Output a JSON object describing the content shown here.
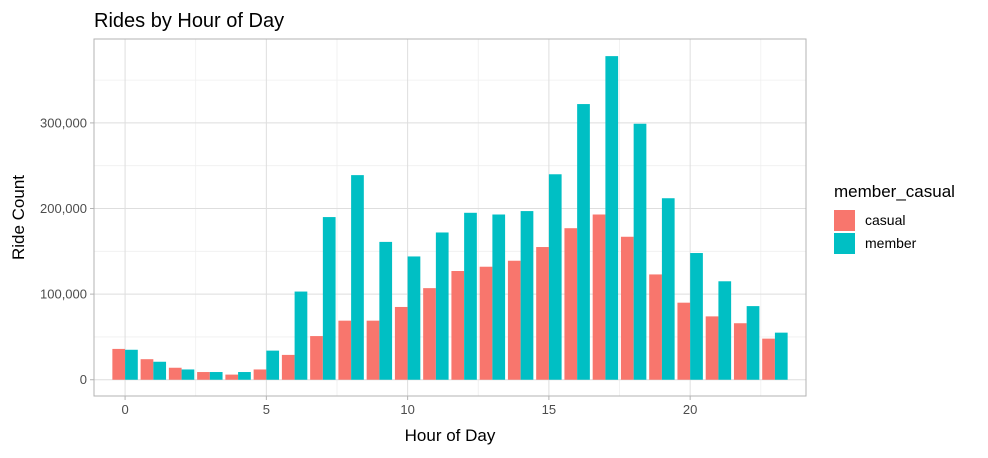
{
  "chart_data": {
    "type": "bar",
    "title": "Rides by Hour of Day",
    "xlabel": "Hour of Day",
    "ylabel": "Ride Count",
    "x": [
      0,
      1,
      2,
      3,
      4,
      5,
      6,
      7,
      8,
      9,
      10,
      11,
      12,
      13,
      14,
      15,
      16,
      17,
      18,
      19,
      20,
      21,
      22,
      23
    ],
    "xticks": [
      0,
      5,
      10,
      15,
      20
    ],
    "xtick_labels": [
      "0",
      "5",
      "10",
      "15",
      "20"
    ],
    "xlim": [
      -1.1,
      24.1
    ],
    "yticks": [
      0,
      100000,
      200000,
      300000
    ],
    "ytick_labels": [
      "0",
      "100,000",
      "200,000",
      "300,000"
    ],
    "ylim": [
      -19000,
      398000
    ],
    "grid": true,
    "legend_position": "right",
    "legend_title": "member_casual",
    "series": [
      {
        "name": "casual",
        "color": "#F8766D",
        "values": [
          36000,
          24000,
          14000,
          9000,
          6000,
          12000,
          29000,
          51000,
          69000,
          69000,
          85000,
          107000,
          127000,
          132000,
          139000,
          155000,
          177000,
          193000,
          167000,
          123000,
          90000,
          74000,
          66000,
          48000
        ]
      },
      {
        "name": "member",
        "color": "#00BFC4",
        "values": [
          35000,
          21000,
          12000,
          9000,
          9000,
          34000,
          103000,
          190000,
          239000,
          161000,
          144000,
          172000,
          195000,
          193000,
          197000,
          240000,
          322000,
          378000,
          299000,
          212000,
          148000,
          115000,
          86000,
          55000
        ]
      }
    ]
  }
}
